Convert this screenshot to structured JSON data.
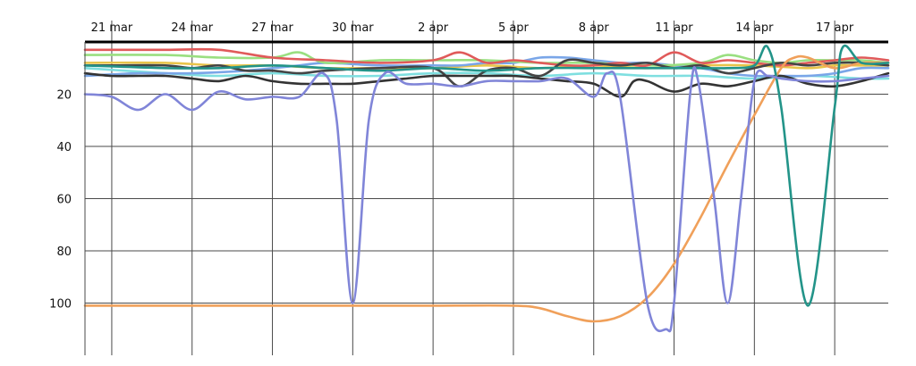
{
  "chart_data": {
    "type": "line",
    "title": "",
    "xlabel": "",
    "ylabel": "",
    "x_ticks": [
      {
        "day": 0,
        "label": "21 mar"
      },
      {
        "day": 3,
        "label": "24 mar"
      },
      {
        "day": 6,
        "label": "27 mar"
      },
      {
        "day": 9,
        "label": "30 mar"
      },
      {
        "day": 12,
        "label": "2 apr"
      },
      {
        "day": 15,
        "label": "5 apr"
      },
      {
        "day": 18,
        "label": "8 apr"
      },
      {
        "day": 21,
        "label": "11 apr"
      },
      {
        "day": 24,
        "label": "14 apr"
      },
      {
        "day": 27,
        "label": "17 apr"
      }
    ],
    "xlim_days": [
      -1,
      29
    ],
    "y_ticks": [
      20,
      40,
      60,
      80,
      100
    ],
    "ylim": [
      0,
      120
    ],
    "y_inverted": true,
    "grid": true,
    "series": [
      {
        "color": "#8085d8",
        "points": [
          [
            -1,
            20
          ],
          [
            0,
            21
          ],
          [
            1,
            26
          ],
          [
            2,
            20
          ],
          [
            3,
            26
          ],
          [
            4,
            19
          ],
          [
            5,
            22
          ],
          [
            6,
            21
          ],
          [
            7,
            21
          ],
          [
            7.9,
            12
          ],
          [
            8.4,
            30
          ],
          [
            9,
            100
          ],
          [
            9.6,
            30
          ],
          [
            10.2,
            12
          ],
          [
            11,
            16
          ],
          [
            12,
            16
          ],
          [
            13,
            17
          ],
          [
            14,
            15
          ],
          [
            15,
            15
          ],
          [
            16,
            15
          ],
          [
            17,
            14
          ],
          [
            18,
            21
          ],
          [
            18.5,
            12
          ],
          [
            19,
            22
          ],
          [
            20,
            100
          ],
          [
            20.7,
            110
          ],
          [
            21,
            100
          ],
          [
            21.6,
            20
          ],
          [
            21.9,
            15
          ],
          [
            22.5,
            60
          ],
          [
            23,
            100
          ],
          [
            23.5,
            60
          ],
          [
            24,
            15
          ],
          [
            24.5,
            13
          ],
          [
            25,
            14
          ],
          [
            26,
            15
          ],
          [
            27,
            15
          ],
          [
            28,
            14
          ],
          [
            29,
            13
          ]
        ]
      },
      {
        "color": "#f0a05a",
        "points": [
          [
            -1,
            101
          ],
          [
            0,
            101
          ],
          [
            3,
            101
          ],
          [
            6,
            101
          ],
          [
            9,
            101
          ],
          [
            12,
            101
          ],
          [
            15,
            101
          ],
          [
            16,
            102
          ],
          [
            17,
            105
          ],
          [
            18,
            107
          ],
          [
            19,
            105
          ],
          [
            20,
            98
          ],
          [
            21,
            85
          ],
          [
            22,
            67
          ],
          [
            23,
            47
          ],
          [
            24,
            28
          ],
          [
            25,
            10
          ],
          [
            25.5,
            6
          ],
          [
            26,
            6
          ],
          [
            27,
            10
          ],
          [
            28,
            8
          ],
          [
            29,
            8
          ]
        ]
      },
      {
        "color": "#239489",
        "points": [
          [
            -1,
            9
          ],
          [
            2,
            10
          ],
          [
            4,
            10
          ],
          [
            6,
            9
          ],
          [
            8,
            10
          ],
          [
            10,
            11
          ],
          [
            12,
            10
          ],
          [
            14,
            11
          ],
          [
            16,
            10
          ],
          [
            18,
            10
          ],
          [
            20,
            10
          ],
          [
            22,
            10
          ],
          [
            23,
            10
          ],
          [
            24,
            9
          ],
          [
            24.5,
            2
          ],
          [
            25,
            25
          ],
          [
            26,
            101
          ],
          [
            27,
            25
          ],
          [
            27.3,
            2
          ],
          [
            28,
            8
          ],
          [
            29,
            8
          ]
        ]
      },
      {
        "color": "#e05a5a",
        "points": [
          [
            -1,
            3
          ],
          [
            2,
            3
          ],
          [
            4,
            3
          ],
          [
            6,
            6
          ],
          [
            8,
            7
          ],
          [
            10,
            8
          ],
          [
            12,
            7
          ],
          [
            13,
            4
          ],
          [
            14,
            8
          ],
          [
            15,
            7
          ],
          [
            16,
            8
          ],
          [
            17,
            9
          ],
          [
            18,
            9
          ],
          [
            19,
            8
          ],
          [
            20,
            9
          ],
          [
            21,
            4
          ],
          [
            22,
            8
          ],
          [
            23,
            7
          ],
          [
            24,
            8
          ],
          [
            25,
            9
          ],
          [
            26,
            8
          ],
          [
            27,
            7
          ],
          [
            28,
            6
          ],
          [
            29,
            7
          ]
        ]
      },
      {
        "color": "#9adf80",
        "points": [
          [
            -1,
            5
          ],
          [
            2,
            5
          ],
          [
            4,
            6
          ],
          [
            6,
            6
          ],
          [
            7,
            4
          ],
          [
            8,
            8
          ],
          [
            10,
            7
          ],
          [
            12,
            7
          ],
          [
            14,
            7
          ],
          [
            16,
            8
          ],
          [
            18,
            8
          ],
          [
            20,
            9
          ],
          [
            22,
            8
          ],
          [
            23,
            5
          ],
          [
            24,
            7
          ],
          [
            25,
            8
          ],
          [
            26,
            7
          ],
          [
            27,
            7
          ],
          [
            28,
            7
          ],
          [
            29,
            8
          ]
        ]
      },
      {
        "color": "#333333",
        "points": [
          [
            -1,
            12
          ],
          [
            0,
            13
          ],
          [
            1,
            13
          ],
          [
            2,
            13
          ],
          [
            3,
            14
          ],
          [
            4,
            15
          ],
          [
            5,
            13
          ],
          [
            6,
            15
          ],
          [
            7,
            16
          ],
          [
            8,
            16
          ],
          [
            9,
            16
          ],
          [
            10,
            15
          ],
          [
            11,
            14
          ],
          [
            12,
            13
          ],
          [
            13,
            13
          ],
          [
            14,
            13
          ],
          [
            15,
            13
          ],
          [
            16,
            14
          ],
          [
            17,
            15
          ],
          [
            18,
            16
          ],
          [
            19,
            21
          ],
          [
            19.5,
            15
          ],
          [
            20,
            15
          ],
          [
            21,
            19
          ],
          [
            22,
            16
          ],
          [
            23,
            17
          ],
          [
            24,
            15
          ],
          [
            25,
            13
          ],
          [
            26,
            16
          ],
          [
            27,
            17
          ],
          [
            28,
            15
          ],
          [
            29,
            12
          ]
        ]
      },
      {
        "color": "#454545",
        "points": [
          [
            -1,
            9
          ],
          [
            0,
            9
          ],
          [
            2,
            9
          ],
          [
            3,
            10
          ],
          [
            4,
            9
          ],
          [
            5,
            11
          ],
          [
            6,
            11
          ],
          [
            7,
            12
          ],
          [
            8,
            11
          ],
          [
            10,
            10
          ],
          [
            12,
            10
          ],
          [
            13,
            17
          ],
          [
            14,
            11
          ],
          [
            15,
            10
          ],
          [
            16,
            13
          ],
          [
            17,
            7
          ],
          [
            18,
            8
          ],
          [
            19,
            9
          ],
          [
            20,
            8
          ],
          [
            21,
            10
          ],
          [
            22,
            9
          ],
          [
            23,
            12
          ],
          [
            24,
            10
          ],
          [
            25,
            8
          ],
          [
            26,
            9
          ],
          [
            27,
            8
          ],
          [
            28,
            8
          ],
          [
            29,
            9
          ]
        ]
      },
      {
        "color": "#7aa6e8",
        "points": [
          [
            -1,
            13
          ],
          [
            1,
            12
          ],
          [
            3,
            12
          ],
          [
            5,
            11
          ],
          [
            7,
            9
          ],
          [
            8,
            8
          ],
          [
            10,
            9
          ],
          [
            12,
            9
          ],
          [
            13,
            9
          ],
          [
            14,
            8
          ],
          [
            15,
            8
          ],
          [
            16,
            6
          ],
          [
            17,
            6
          ],
          [
            18,
            7
          ],
          [
            19,
            8
          ],
          [
            20,
            8
          ],
          [
            21,
            9
          ],
          [
            22,
            10
          ],
          [
            23,
            12
          ],
          [
            24,
            13
          ],
          [
            25,
            13
          ],
          [
            26,
            13
          ],
          [
            27,
            12
          ],
          [
            28,
            10
          ],
          [
            29,
            10
          ]
        ]
      },
      {
        "color": "#7fdfe0",
        "points": [
          [
            -1,
            10
          ],
          [
            2,
            12
          ],
          [
            4,
            13
          ],
          [
            6,
            12
          ],
          [
            8,
            13
          ],
          [
            10,
            13
          ],
          [
            12,
            12
          ],
          [
            14,
            12
          ],
          [
            16,
            13
          ],
          [
            18,
            12
          ],
          [
            20,
            13
          ],
          [
            22,
            13
          ],
          [
            24,
            14
          ],
          [
            26,
            13
          ],
          [
            28,
            14
          ],
          [
            29,
            14
          ]
        ]
      },
      {
        "color": "#e8c44a",
        "points": [
          [
            -1,
            8
          ],
          [
            2,
            8
          ],
          [
            4,
            9
          ],
          [
            6,
            9
          ],
          [
            8,
            10
          ],
          [
            10,
            10
          ],
          [
            12,
            10
          ],
          [
            14,
            9
          ],
          [
            16,
            10
          ],
          [
            18,
            9
          ],
          [
            20,
            10
          ],
          [
            22,
            9
          ],
          [
            24,
            9
          ],
          [
            26,
            10
          ],
          [
            27,
            9
          ],
          [
            28,
            9
          ],
          [
            29,
            9
          ]
        ]
      }
    ]
  }
}
